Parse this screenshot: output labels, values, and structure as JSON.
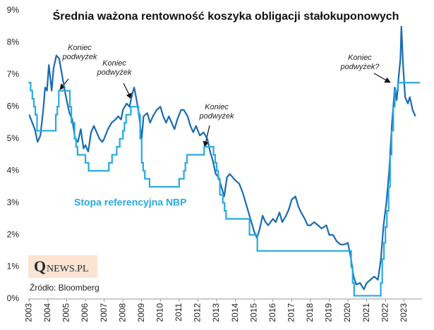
{
  "chart_data": {
    "type": "line",
    "title": "Średnia ważona rentowność koszyka obligacji stałokuponowych",
    "xlim": [
      2002.95,
      2023.95
    ],
    "xticks": [
      2003,
      2004,
      2005,
      2006,
      2007,
      2008,
      2009,
      2010,
      2011,
      2012,
      2013,
      2014,
      2015,
      2016,
      2017,
      2018,
      2019,
      2020,
      2021,
      2022,
      2023
    ],
    "ylim": [
      0,
      9
    ],
    "yticks": [
      {
        "value": 0,
        "label": "0%"
      },
      {
        "value": 1,
        "label": "1%"
      },
      {
        "value": 2,
        "label": "2%"
      },
      {
        "value": 3,
        "label": "3%"
      },
      {
        "value": 4,
        "label": "4%"
      },
      {
        "value": 5,
        "label": "5%"
      },
      {
        "value": 6,
        "label": "6%"
      },
      {
        "value": 7,
        "label": "7%"
      },
      {
        "value": 8,
        "label": "8%"
      },
      {
        "value": 9,
        "label": "9%"
      }
    ],
    "grid": false,
    "series": [
      {
        "color": "#1a6bb0",
        "x": [
          2003.0,
          2003.3,
          2003.45,
          2003.6,
          2003.75,
          2003.85,
          2003.95,
          2004.05,
          2004.2,
          2004.3,
          2004.45,
          2004.6,
          2004.75,
          2004.9,
          2005.0,
          2005.15,
          2005.3,
          2005.45,
          2005.6,
          2005.75,
          2005.9,
          2006.0,
          2006.15,
          2006.3,
          2006.45,
          2006.6,
          2006.75,
          2006.9,
          2007.0,
          2007.2,
          2007.4,
          2007.6,
          2007.75,
          2007.9,
          2008.0,
          2008.2,
          2008.35,
          2008.5,
          2008.6,
          2008.7,
          2008.85,
          2009.0,
          2009.1,
          2009.3,
          2009.45,
          2009.6,
          2009.8,
          2010.0,
          2010.15,
          2010.3,
          2010.45,
          2010.6,
          2010.75,
          2010.9,
          2011.1,
          2011.25,
          2011.45,
          2011.6,
          2011.75,
          2011.9,
          2012.1,
          2012.3,
          2012.5,
          2012.65,
          2012.8,
          2012.95,
          2013.1,
          2013.25,
          2013.4,
          2013.55,
          2013.7,
          2013.85,
          2014.0,
          2014.2,
          2014.4,
          2014.6,
          2014.8,
          2015.0,
          2015.15,
          2015.3,
          2015.45,
          2015.6,
          2015.75,
          2016.0,
          2016.15,
          2016.35,
          2016.5,
          2016.7,
          2016.85,
          2017.0,
          2017.2,
          2017.35,
          2017.5,
          2017.7,
          2017.85,
          2018.0,
          2018.2,
          2018.4,
          2018.6,
          2018.85,
          2019.0,
          2019.2,
          2019.4,
          2019.6,
          2019.8,
          2020.0,
          2020.15,
          2020.3,
          2020.45,
          2020.65,
          2020.85,
          2021.0,
          2021.2,
          2021.4,
          2021.6,
          2021.75,
          2021.9,
          2022.05,
          2022.2,
          2022.35,
          2022.5,
          2022.6,
          2022.7,
          2022.8,
          2022.85,
          2022.95,
          2023.05,
          2023.2,
          2023.3,
          2023.45,
          2023.6
        ],
        "values": [
          5.75,
          5.3,
          4.9,
          5.1,
          5.9,
          6.6,
          6.5,
          7.3,
          6.5,
          7.2,
          7.6,
          7.5,
          7.0,
          6.5,
          6.2,
          5.8,
          5.6,
          5.0,
          4.9,
          5.3,
          4.7,
          4.8,
          4.6,
          5.2,
          5.4,
          5.2,
          5.0,
          4.9,
          5.0,
          5.3,
          5.5,
          5.6,
          5.7,
          5.6,
          5.9,
          6.1,
          6.0,
          6.4,
          6.6,
          6.3,
          5.8,
          5.0,
          5.7,
          5.8,
          5.5,
          5.7,
          5.9,
          6.0,
          5.7,
          5.5,
          5.7,
          5.5,
          5.3,
          5.6,
          5.9,
          5.9,
          5.7,
          5.4,
          5.2,
          5.4,
          5.1,
          5.2,
          5.0,
          4.6,
          4.3,
          3.9,
          3.8,
          3.5,
          3.2,
          3.8,
          3.9,
          3.8,
          3.7,
          3.6,
          3.3,
          2.9,
          2.5,
          2.1,
          1.9,
          2.2,
          2.6,
          2.4,
          2.3,
          2.5,
          2.4,
          2.7,
          2.4,
          2.6,
          2.8,
          3.1,
          3.2,
          2.9,
          2.7,
          2.5,
          2.3,
          2.3,
          2.4,
          2.3,
          2.2,
          2.3,
          2.0,
          2.0,
          1.8,
          1.7,
          1.7,
          1.75,
          1.3,
          0.7,
          0.45,
          0.5,
          0.3,
          0.5,
          0.6,
          0.7,
          0.6,
          1.2,
          2.3,
          3.0,
          4.0,
          5.5,
          6.6,
          6.2,
          6.9,
          7.5,
          8.5,
          7.2,
          6.3,
          6.1,
          6.3,
          5.9,
          5.7
        ]
      },
      {
        "name": "Stopa referencyjna NBP",
        "color": "#29a9e0",
        "step": true,
        "x": [
          2003.0,
          2003.08,
          2003.17,
          2003.25,
          2003.33,
          2003.42,
          2004.42,
          2004.5,
          2004.58,
          2005.17,
          2005.25,
          2005.42,
          2005.5,
          2005.58,
          2006.0,
          2006.17,
          2007.25,
          2007.42,
          2007.67,
          2007.83,
          2008.0,
          2008.08,
          2008.17,
          2008.42,
          2008.83,
          2008.92,
          2009.0,
          2009.08,
          2009.17,
          2009.42,
          2011.0,
          2011.25,
          2011.33,
          2011.42,
          2012.33,
          2012.83,
          2012.92,
          2013.0,
          2013.08,
          2013.17,
          2013.33,
          2013.42,
          2013.5,
          2014.75,
          2015.17,
          2020.17,
          2020.25,
          2020.33,
          2021.75,
          2021.83,
          2021.92,
          2022.0,
          2022.08,
          2022.17,
          2022.25,
          2022.33,
          2022.42,
          2022.5,
          2022.67,
          2023.8
        ],
        "values": [
          6.75,
          6.5,
          6.25,
          6.0,
          5.75,
          5.25,
          5.75,
          6.0,
          6.5,
          6.0,
          5.5,
          5.0,
          4.75,
          4.5,
          4.25,
          4.0,
          4.25,
          4.5,
          4.75,
          5.0,
          5.25,
          5.5,
          5.75,
          6.0,
          5.75,
          5.0,
          4.25,
          4.0,
          3.75,
          3.5,
          3.75,
          4.0,
          4.25,
          4.5,
          4.75,
          4.5,
          4.25,
          4.0,
          3.75,
          3.25,
          3.0,
          2.75,
          2.5,
          2.0,
          1.5,
          1.0,
          0.5,
          0.1,
          0.5,
          1.25,
          1.75,
          2.25,
          2.75,
          3.5,
          4.5,
          5.25,
          6.0,
          6.5,
          6.75,
          6.75
        ]
      }
    ],
    "annotations": [
      {
        "lines": [
          "Koniec",
          "podwyżek"
        ]
      },
      {
        "lines": [
          "Koniec",
          "podwyżek"
        ]
      },
      {
        "lines": [
          "Koniec",
          "podwyżek"
        ]
      },
      {
        "lines": [
          "Koniec",
          "podwyżek?"
        ]
      }
    ],
    "source": "Źródło: Bloomberg",
    "logo": {
      "initial": "Q",
      "rest": "NEWS.PL"
    }
  }
}
